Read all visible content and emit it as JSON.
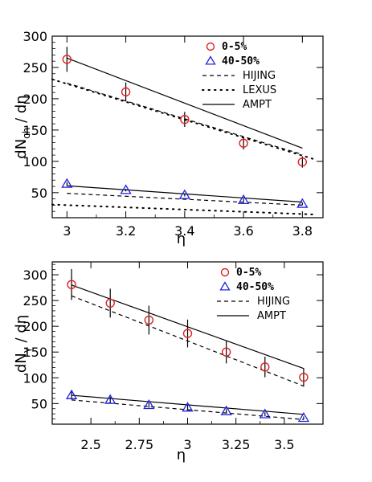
{
  "chart_data": [
    {
      "type": "scatter",
      "panel": "top",
      "xlabel": "η",
      "ylabel": {
        "main": "dN",
        "sub": "ch",
        "tail": " / dη"
      },
      "xlim": [
        2.95,
        3.87
      ],
      "ylim": [
        10,
        300
      ],
      "xticks": [
        3,
        3.2,
        3.4,
        3.6,
        3.8
      ],
      "xtick_labels": [
        "3",
        "3.2",
        "3.4",
        "3.6",
        "3.8"
      ],
      "yticks": [
        50,
        100,
        150,
        200,
        250,
        300
      ],
      "ytick_labels": [
        "50",
        "100",
        "150",
        "200",
        "250",
        "300"
      ],
      "grid": false,
      "legend_position": "top-right",
      "legend": [
        {
          "label": "0-5%",
          "marker": "circle",
          "color": "#e02020",
          "style": "bold"
        },
        {
          "label": "40-50%",
          "marker": "triangle",
          "color": "#2020e0",
          "style": "bold"
        },
        {
          "label": "HIJING",
          "line": "dashed",
          "color": "#000000"
        },
        {
          "label": "LEXUS",
          "line": "dotted",
          "color": "#000000"
        },
        {
          "label": "AMPT",
          "line": "solid",
          "color": "#000000"
        }
      ],
      "series": [
        {
          "name": "0-5%",
          "kind": "points",
          "marker": "circle",
          "color": "#e02020",
          "x": [
            3.0,
            3.2,
            3.4,
            3.6,
            3.8
          ],
          "y": [
            263,
            211,
            167,
            129,
            99
          ],
          "err": [
            20,
            15,
            12,
            10,
            9
          ]
        },
        {
          "name": "40-50%",
          "kind": "points",
          "marker": "triangle",
          "color": "#2020e0",
          "x": [
            3.0,
            3.2,
            3.4,
            3.6,
            3.8
          ],
          "y": [
            64,
            54,
            46,
            38,
            32
          ],
          "err": [
            3,
            2,
            2,
            2,
            2
          ]
        },
        {
          "name": "AMPT",
          "kind": "line",
          "dash": "solid",
          "x": [
            3.0,
            3.8
          ],
          "y": [
            265,
            121
          ]
        },
        {
          "name": "AMPT",
          "kind": "line",
          "dash": "solid",
          "x": [
            3.0,
            3.8
          ],
          "y": [
            61,
            35
          ]
        },
        {
          "name": "HIJING",
          "kind": "line",
          "dash": "dashed",
          "x": [
            3.0,
            3.8
          ],
          "y": [
            225,
            111
          ]
        },
        {
          "name": "HIJING",
          "kind": "line",
          "dash": "dashed",
          "x": [
            3.0,
            3.8
          ],
          "y": [
            49,
            30
          ]
        },
        {
          "name": "LEXUS",
          "kind": "line",
          "dash": "dotted",
          "x": [
            2.95,
            3.85
          ],
          "y": [
            231,
            102
          ]
        },
        {
          "name": "LEXUS",
          "kind": "line",
          "dash": "dotted",
          "x": [
            2.95,
            3.85
          ],
          "y": [
            31,
            15
          ]
        }
      ]
    },
    {
      "type": "scatter",
      "panel": "bottom",
      "xlabel": "η",
      "ylabel": {
        "main": "dN",
        "sub": "γ",
        "tail": " / dη"
      },
      "xlim": [
        2.3,
        3.7
      ],
      "ylim": [
        10,
        325
      ],
      "xticks": [
        2.5,
        2.75,
        3,
        3.25,
        3.5
      ],
      "xtick_labels": [
        "2.5",
        "2.75",
        "3",
        "3.25",
        "3.5"
      ],
      "yticks": [
        50,
        100,
        150,
        200,
        250,
        300
      ],
      "ytick_labels": [
        "50",
        "100",
        "150",
        "200",
        "250",
        "300"
      ],
      "grid": false,
      "legend_position": "top-right",
      "legend": [
        {
          "label": "0-5%",
          "marker": "circle",
          "color": "#e02020",
          "style": "bold"
        },
        {
          "label": "40-50%",
          "marker": "triangle",
          "color": "#2020e0",
          "style": "bold"
        },
        {
          "label": "HIJING",
          "line": "dashed",
          "color": "#000000"
        },
        {
          "label": "AMPT",
          "line": "solid",
          "color": "#000000"
        }
      ],
      "series": [
        {
          "name": "0-5%",
          "kind": "points",
          "marker": "circle",
          "color": "#e02020",
          "x": [
            2.4,
            2.6,
            2.8,
            3.0,
            3.2,
            3.4,
            3.6
          ],
          "y": [
            281,
            245,
            212,
            186,
            150,
            121,
            101
          ],
          "err": [
            30,
            28,
            28,
            27,
            22,
            20,
            18
          ]
        },
        {
          "name": "40-50%",
          "kind": "points",
          "marker": "triangle",
          "color": "#2020e0",
          "x": [
            2.4,
            2.6,
            2.8,
            3.0,
            3.2,
            3.4,
            3.6
          ],
          "y": [
            66,
            57,
            47,
            42,
            35,
            29,
            22
          ],
          "err": [
            8,
            6,
            5,
            5,
            4,
            4,
            3
          ]
        },
        {
          "name": "AMPT",
          "kind": "line",
          "dash": "solid",
          "x": [
            2.4,
            3.6
          ],
          "y": [
            280,
            118
          ]
        },
        {
          "name": "AMPT",
          "kind": "line",
          "dash": "solid",
          "x": [
            2.4,
            3.6
          ],
          "y": [
            66,
            29
          ]
        },
        {
          "name": "HIJING",
          "kind": "line",
          "dash": "dashed",
          "x": [
            2.4,
            3.6
          ],
          "y": [
            259,
            84
          ]
        },
        {
          "name": "HIJING",
          "kind": "line",
          "dash": "dashed",
          "x": [
            2.4,
            3.6
          ],
          "y": [
            57,
            19
          ]
        }
      ]
    }
  ]
}
